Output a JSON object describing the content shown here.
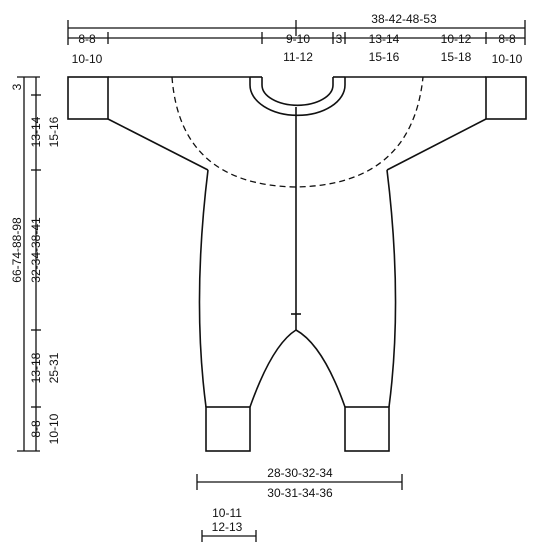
{
  "top_measurements": {
    "total": "38-42-48-53",
    "cuff_left": {
      "line1": "8-8",
      "line2": "10-10"
    },
    "neck": {
      "line1": "9-10",
      "line2": "11-12"
    },
    "small": "3",
    "upper_sleeve": {
      "line1": "13-14",
      "line2": "15-16"
    },
    "lower_sleeve": {
      "line1": "10-12",
      "line2": "15-18"
    },
    "cuff_right": {
      "line1": "8-8",
      "line2": "10-10"
    }
  },
  "left_measurements": {
    "top": "3",
    "armhole": {
      "line1": "13-14",
      "line2": "15-16"
    },
    "total": {
      "line1": "66-74-88-98",
      "line2": "32-34-38-41"
    },
    "leg": {
      "line1": "13-18",
      "line2": "25-31"
    },
    "ankle": {
      "line1": "8-8",
      "line2": "10-10"
    }
  },
  "bottom_measurements": {
    "width": {
      "line1": "28-30-32-34",
      "line2": "30-31-34-36"
    },
    "foot": {
      "line1": "10-11",
      "line2": "12-13"
    }
  }
}
